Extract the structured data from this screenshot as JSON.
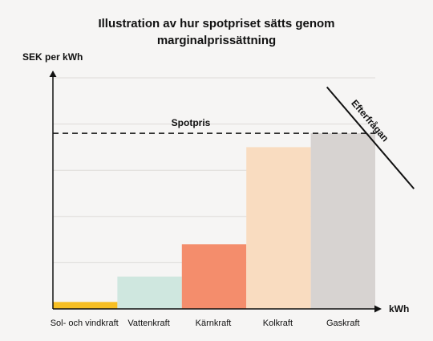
{
  "chart_data": {
    "type": "bar",
    "title_line1": "Illustration av hur spotpriset sätts genom",
    "title_line2": "marginalprissättning",
    "xlabel": "kWh",
    "ylabel": "SEK per kWh",
    "ylim": [
      0,
      10
    ],
    "grid": true,
    "categories": [
      "Sol- och vindkraft",
      "Vattenkraft",
      "Kärnkraft",
      "Kolkraft",
      "Gaskraft"
    ],
    "values": [
      0.3,
      1.4,
      2.8,
      7.0,
      7.6
    ],
    "colors": [
      "#f7bf23",
      "#cfe7df",
      "#f48d6c",
      "#f9dcc0",
      "#d7d3d1"
    ],
    "spot_price": {
      "label": "Spotpris",
      "value": 7.6
    },
    "demand_curve": {
      "label": "Efterfrågan",
      "start": {
        "x": 4.25,
        "y": 9.6
      },
      "end": {
        "x": 5.6,
        "y": 5.2
      }
    }
  }
}
